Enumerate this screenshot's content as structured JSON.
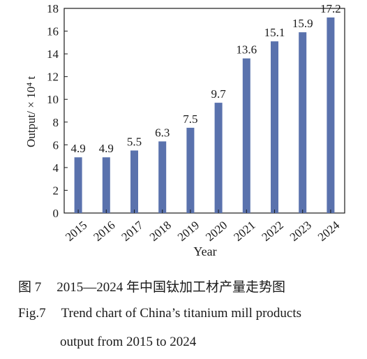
{
  "chart_data": {
    "type": "bar",
    "categories": [
      "2015",
      "2016",
      "2017",
      "2018",
      "2019",
      "2020",
      "2021",
      "2022",
      "2023",
      "2024"
    ],
    "values": [
      4.9,
      4.9,
      5.5,
      6.3,
      7.5,
      9.7,
      13.6,
      15.1,
      15.9,
      17.2
    ],
    "value_labels": [
      "4.9",
      "4.9",
      "5.5",
      "6.3",
      "7.5",
      "9.7",
      "13.6",
      "15.1",
      "15.9",
      "17.2"
    ],
    "xlabel": "Year",
    "ylabel": "Output/ × 10⁴ t",
    "ylim": [
      0,
      18
    ],
    "yticks": [
      "0",
      "2",
      "4",
      "6",
      "8",
      "10",
      "12",
      "14",
      "16",
      "18"
    ],
    "grid": false,
    "bar_color": "#5a72ad"
  },
  "caption": {
    "cn_label": "图 7",
    "cn_text": "2015—2024 年中国钛加工材产量走势图",
    "en_label": "Fig.7",
    "en_text_line1": "Trend chart of China’s titanium mill products",
    "en_text_line2": "output from 2015 to 2024"
  }
}
